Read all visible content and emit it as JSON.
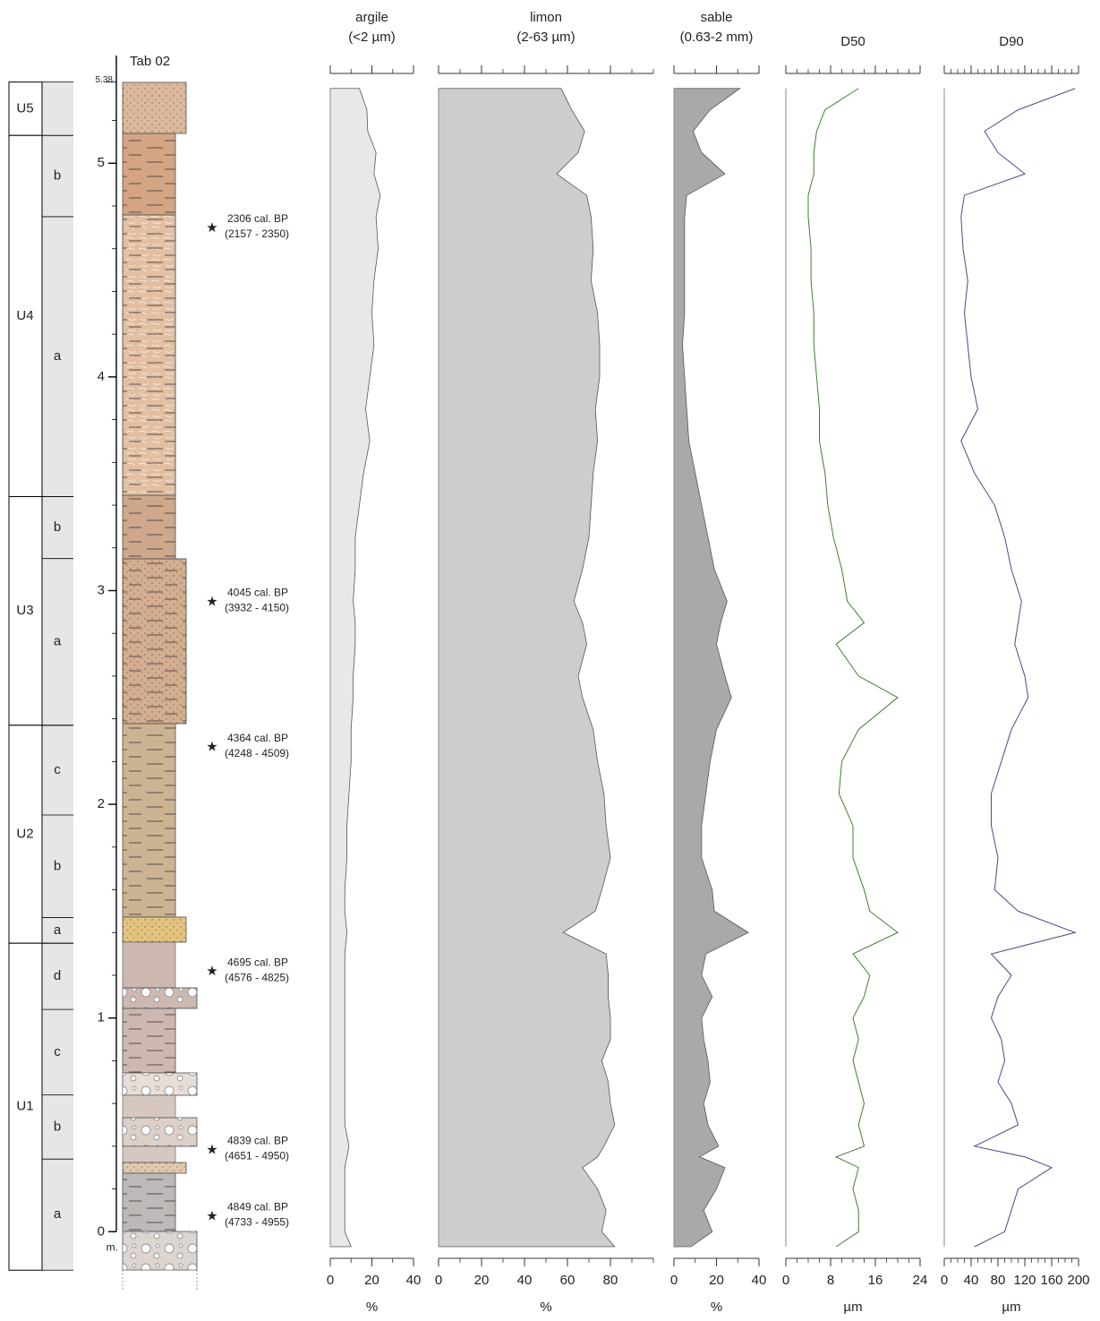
{
  "chart_data": [
    {
      "type": "log",
      "title": "Tab 02",
      "y_label": "m.",
      "ylim": [
        -0.07,
        5.38
      ],
      "yticks": [
        0,
        1,
        2,
        3,
        4,
        5,
        5.38
      ],
      "units": [
        {
          "label": "U5",
          "top": 5.38,
          "base": 5.13
        },
        {
          "label": "U4",
          "top": 5.13,
          "base": 3.44
        },
        {
          "label": "U3",
          "top": 3.44,
          "base": 2.37
        },
        {
          "label": "U2",
          "top": 2.37,
          "base": 1.35
        },
        {
          "label": "U1",
          "top": 1.35,
          "base": -0.18
        }
      ],
      "subunits": [
        {
          "label": "b",
          "top": 5.13,
          "base": 4.75
        },
        {
          "label": "a",
          "top": 4.75,
          "base": 3.44
        },
        {
          "label": "b",
          "top": 3.44,
          "base": 3.15
        },
        {
          "label": "a",
          "top": 3.15,
          "base": 2.37
        },
        {
          "label": "c",
          "top": 2.37,
          "base": 1.95
        },
        {
          "label": "b",
          "top": 1.95,
          "base": 1.47
        },
        {
          "label": "a",
          "top": 1.47,
          "base": 1.35
        },
        {
          "label": "d",
          "top": 1.35,
          "base": 1.04
        },
        {
          "label": "c",
          "top": 1.04,
          "base": 0.64
        },
        {
          "label": "b",
          "top": 0.64,
          "base": 0.34
        },
        {
          "label": "a",
          "top": 0.34,
          "base": -0.18
        }
      ],
      "dates": [
        {
          "label": "2306 cal. BP",
          "range": "(2157 - 2350)",
          "depth": 4.7
        },
        {
          "label": "4045 cal. BP",
          "range": "(3932 - 4150)",
          "depth": 2.95
        },
        {
          "label": "4364 cal. BP",
          "range": "(4248 - 4509)",
          "depth": 2.27
        },
        {
          "label": "4695 cal. BP",
          "range": "(4576 - 4825)",
          "depth": 1.22
        },
        {
          "label": "4839 cal. BP",
          "range": "(4651 - 4950)",
          "depth": 0.385
        },
        {
          "label": "4849 cal. BP",
          "range": "(4733 - 4955)",
          "depth": 0.075
        }
      ]
    },
    {
      "type": "area",
      "title": [
        "argile",
        "(<2 µm)"
      ],
      "x_label": "%",
      "color": "#e8e8e8",
      "xlim": [
        0,
        40
      ],
      "xticks": [
        0,
        20,
        40
      ],
      "y": [
        5.35,
        5.25,
        5.15,
        5.05,
        4.95,
        4.85,
        4.75,
        4.6,
        4.45,
        4.3,
        4.15,
        4.0,
        3.85,
        3.7,
        3.55,
        3.4,
        3.25,
        3.1,
        2.95,
        2.85,
        2.75,
        2.6,
        2.5,
        2.35,
        2.2,
        2.05,
        1.9,
        1.75,
        1.6,
        1.5,
        1.4,
        1.3,
        1.2,
        1.1,
        1.0,
        0.9,
        0.8,
        0.7,
        0.6,
        0.5,
        0.4,
        0.35,
        0.3,
        0.2,
        0.1,
        0.0,
        -0.07
      ],
      "values": [
        14,
        17.6,
        18,
        22,
        21,
        24,
        22,
        23,
        21,
        20,
        21,
        19,
        17,
        19,
        16,
        14,
        12,
        12,
        11,
        12,
        12,
        11,
        11,
        10,
        10,
        9,
        8,
        8,
        7,
        7,
        8,
        7,
        7,
        7,
        7,
        7,
        7,
        7,
        7,
        7,
        9,
        8,
        7,
        7,
        7,
        7,
        10
      ]
    },
    {
      "type": "area",
      "title": [
        "limon",
        "(2-63 µm)"
      ],
      "x_label": "%",
      "color": "#cdcdcd",
      "xlim": [
        0,
        100
      ],
      "xticks": [
        0,
        20,
        40,
        60,
        80
      ],
      "y": [
        5.35,
        5.25,
        5.15,
        5.05,
        4.95,
        4.85,
        4.75,
        4.6,
        4.45,
        4.3,
        4.15,
        4.0,
        3.85,
        3.7,
        3.55,
        3.4,
        3.25,
        3.1,
        2.95,
        2.85,
        2.75,
        2.6,
        2.5,
        2.35,
        2.2,
        2.05,
        1.9,
        1.75,
        1.6,
        1.5,
        1.4,
        1.3,
        1.2,
        1.1,
        1.0,
        0.9,
        0.8,
        0.7,
        0.6,
        0.5,
        0.4,
        0.35,
        0.3,
        0.2,
        0.1,
        0.0,
        -0.07
      ],
      "values": [
        57,
        62,
        68,
        65,
        55,
        69,
        71,
        72,
        71,
        74,
        75,
        75,
        73,
        74,
        72,
        71,
        70,
        67,
        63,
        67,
        69,
        65,
        67,
        72,
        74,
        77,
        78,
        80,
        76,
        73,
        58,
        78,
        79,
        79,
        80,
        80,
        76,
        79,
        80,
        82,
        77,
        74,
        67,
        74,
        78,
        76,
        82
      ]
    },
    {
      "type": "area",
      "title": [
        "sable",
        "(0.63-2 mm)"
      ],
      "x_label": "%",
      "color": "#a9a9a9",
      "xlim": [
        0,
        40
      ],
      "xticks": [
        0,
        20,
        40
      ],
      "y": [
        5.35,
        5.25,
        5.15,
        5.05,
        4.95,
        4.85,
        4.75,
        4.6,
        4.45,
        4.3,
        4.15,
        4.0,
        3.85,
        3.7,
        3.55,
        3.4,
        3.25,
        3.1,
        2.95,
        2.85,
        2.75,
        2.6,
        2.5,
        2.35,
        2.2,
        2.05,
        1.9,
        1.75,
        1.6,
        1.5,
        1.4,
        1.3,
        1.2,
        1.1,
        1.0,
        0.9,
        0.8,
        0.7,
        0.6,
        0.5,
        0.4,
        0.35,
        0.3,
        0.2,
        0.1,
        0.0,
        -0.07
      ],
      "values": [
        31,
        17,
        9,
        13,
        24,
        6,
        5,
        5,
        5,
        5,
        4,
        5,
        6,
        7,
        10,
        13,
        16,
        19,
        25,
        22,
        20,
        24,
        27,
        20,
        17,
        15,
        13,
        13,
        18,
        19,
        35,
        15,
        13,
        18,
        13,
        14,
        16,
        17,
        14,
        16,
        21,
        12,
        24,
        20,
        14,
        18,
        8
      ]
    },
    {
      "type": "line",
      "title": [
        "D50"
      ],
      "x_label": "µm",
      "color": "#3f7f2f",
      "xlim": [
        0,
        24
      ],
      "xticks": [
        0,
        8,
        16,
        24
      ],
      "y": [
        5.35,
        5.25,
        5.15,
        5.05,
        4.95,
        4.85,
        4.75,
        4.6,
        4.45,
        4.3,
        4.15,
        4.0,
        3.85,
        3.7,
        3.55,
        3.4,
        3.25,
        3.1,
        2.95,
        2.85,
        2.75,
        2.6,
        2.5,
        2.35,
        2.2,
        2.05,
        1.9,
        1.75,
        1.6,
        1.5,
        1.4,
        1.3,
        1.2,
        1.1,
        1.0,
        0.9,
        0.8,
        0.7,
        0.6,
        0.5,
        0.4,
        0.35,
        0.3,
        0.2,
        0.1,
        0.0,
        -0.07
      ],
      "values": [
        13,
        7,
        5.5,
        5,
        5,
        4,
        4,
        4.5,
        4.5,
        5,
        5,
        5.5,
        6,
        6,
        7,
        7.5,
        8.5,
        10,
        11,
        14,
        9,
        13,
        20,
        13,
        10,
        9.5,
        12,
        12,
        14,
        15,
        20,
        12,
        15,
        14,
        12,
        13,
        12,
        13,
        14,
        13,
        14,
        9,
        13,
        12,
        13,
        13,
        9
      ]
    },
    {
      "type": "line",
      "title": [
        "D90"
      ],
      "x_label": "µm",
      "color": "#4a4a8c",
      "xlim": [
        0,
        200
      ],
      "xticks": [
        0,
        40,
        80,
        120,
        160,
        200
      ],
      "y": [
        5.35,
        5.25,
        5.15,
        5.05,
        4.95,
        4.85,
        4.75,
        4.6,
        4.45,
        4.3,
        4.15,
        4.0,
        3.85,
        3.7,
        3.55,
        3.4,
        3.25,
        3.1,
        2.95,
        2.85,
        2.75,
        2.6,
        2.5,
        2.35,
        2.2,
        2.05,
        1.9,
        1.75,
        1.6,
        1.5,
        1.4,
        1.3,
        1.2,
        1.1,
        1.0,
        0.9,
        0.8,
        0.7,
        0.6,
        0.5,
        0.4,
        0.35,
        0.3,
        0.2,
        0.1,
        0.0,
        -0.07
      ],
      "values": [
        195,
        110,
        60,
        80,
        120,
        30,
        25,
        28,
        35,
        30,
        35,
        40,
        50,
        25,
        45,
        75,
        90,
        100,
        115,
        110,
        105,
        120,
        125,
        100,
        85,
        70,
        70,
        80,
        75,
        110,
        195,
        70,
        100,
        80,
        70,
        85,
        90,
        80,
        100,
        110,
        45,
        120,
        160,
        110,
        100,
        90,
        45
      ]
    }
  ]
}
